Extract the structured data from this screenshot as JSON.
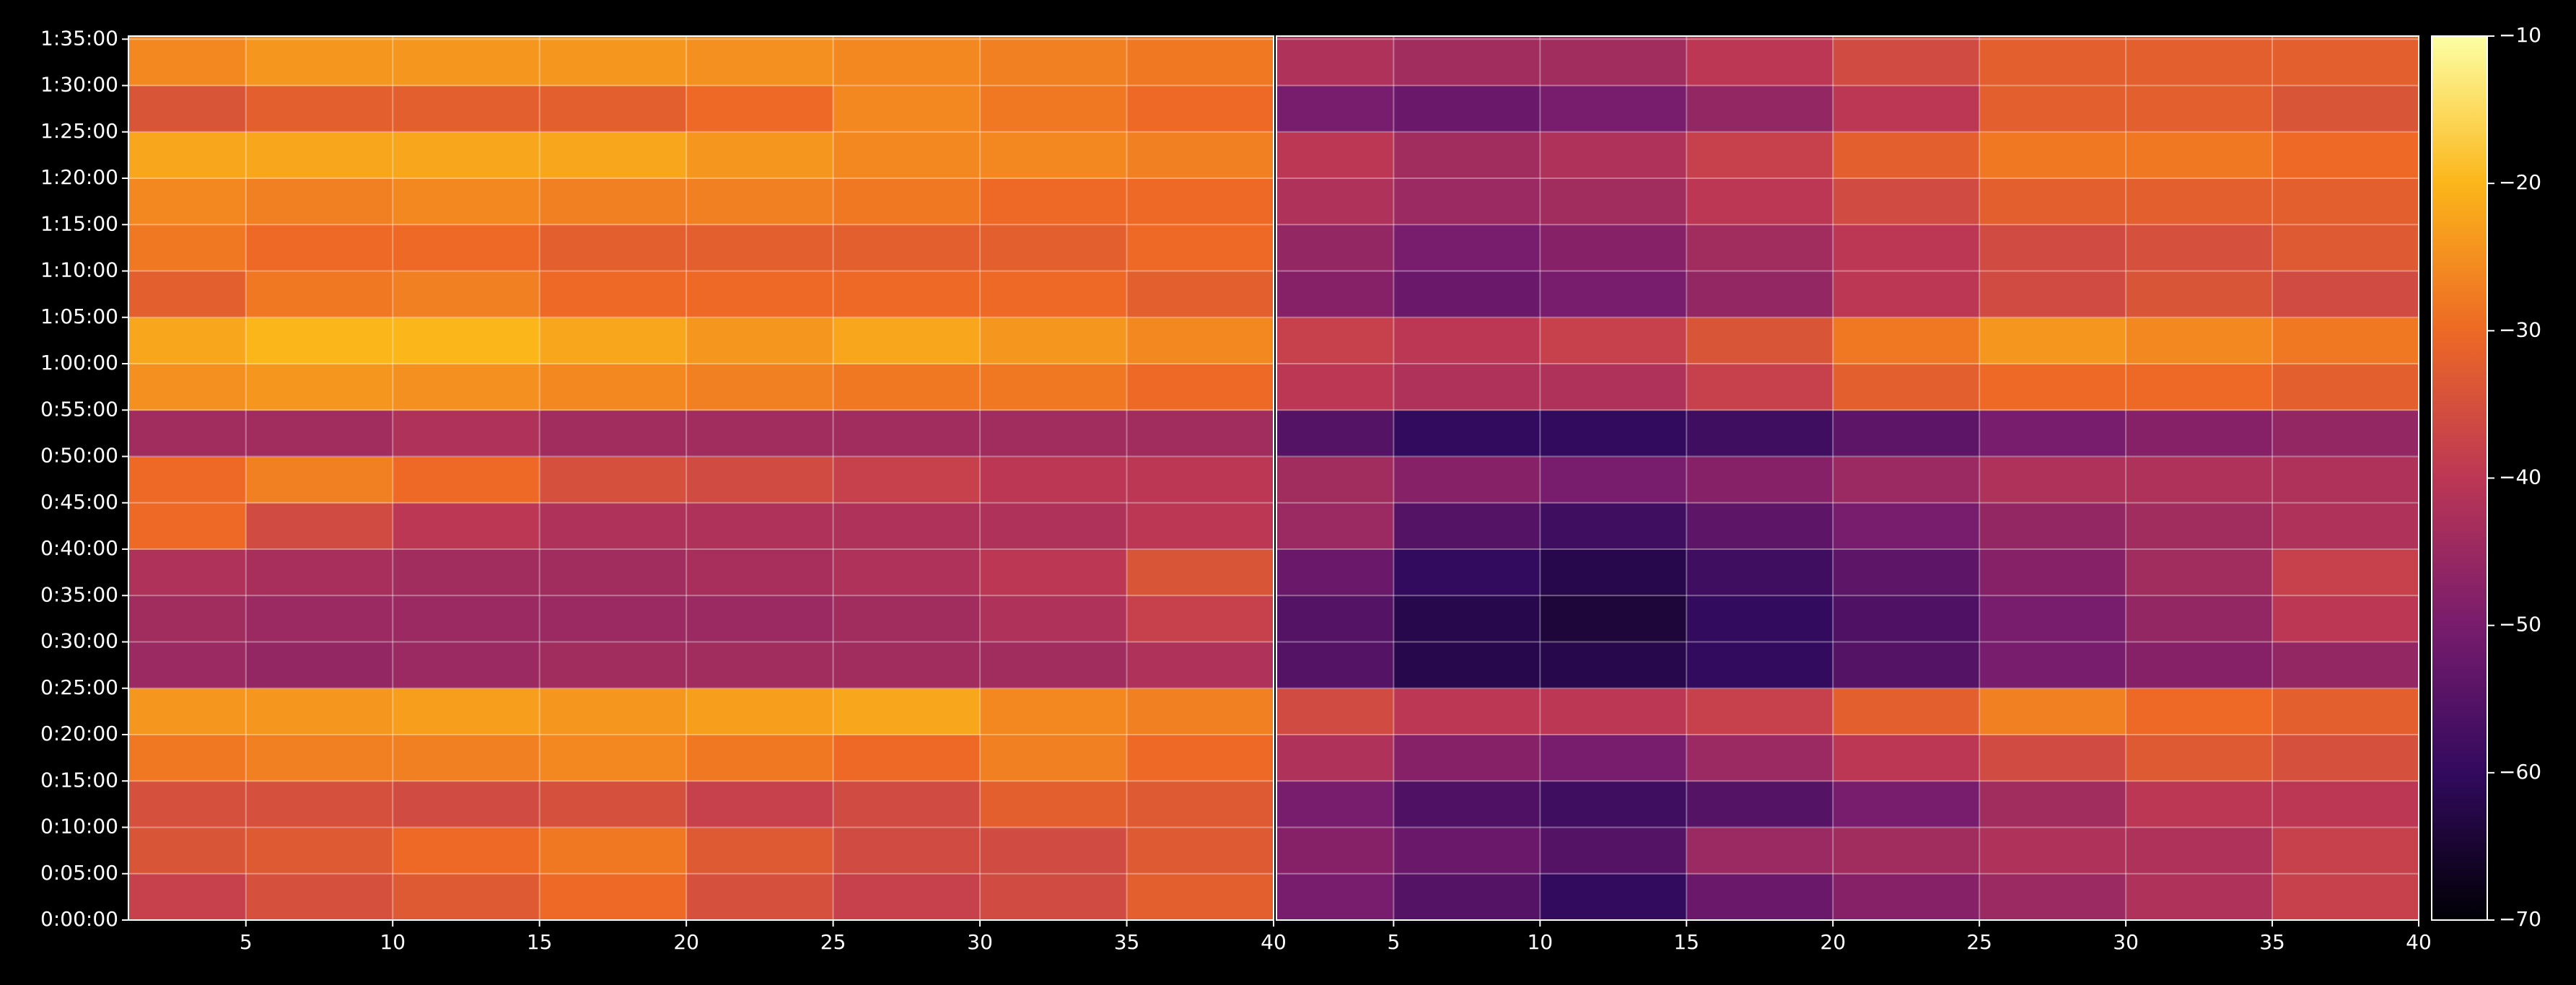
{
  "chart_data": [
    {
      "type": "heatmap",
      "xlim": [
        1,
        40
      ],
      "xticks": [
        5,
        10,
        15,
        20,
        25,
        30,
        35,
        40
      ],
      "ylim": [
        0,
        5720
      ],
      "yticks": [
        {
          "value": 0,
          "label": "0:00:00"
        },
        {
          "value": 300,
          "label": "0:05:00"
        },
        {
          "value": 600,
          "label": "0:10:00"
        },
        {
          "value": 900,
          "label": "0:15:00"
        },
        {
          "value": 1200,
          "label": "0:20:00"
        },
        {
          "value": 1500,
          "label": "0:25:00"
        },
        {
          "value": 1800,
          "label": "0:30:00"
        },
        {
          "value": 2100,
          "label": "0:35:00"
        },
        {
          "value": 2400,
          "label": "0:40:00"
        },
        {
          "value": 2700,
          "label": "0:45:00"
        },
        {
          "value": 3000,
          "label": "0:50:00"
        },
        {
          "value": 3300,
          "label": "0:55:00"
        },
        {
          "value": 3600,
          "label": "1:00:00"
        },
        {
          "value": 3900,
          "label": "1:05:00"
        },
        {
          "value": 4200,
          "label": "1:10:00"
        },
        {
          "value": 4500,
          "label": "1:15:00"
        },
        {
          "value": 4800,
          "label": "1:20:00"
        },
        {
          "value": 5100,
          "label": "1:25:00"
        },
        {
          "value": 5400,
          "label": "1:30:00"
        },
        {
          "value": 5700,
          "label": "1:35:00"
        }
      ],
      "grid": true,
      "xbins": [
        1,
        5,
        10,
        15,
        20,
        25,
        30,
        35,
        40
      ],
      "ybins": [
        0,
        300,
        600,
        900,
        1200,
        1500,
        1800,
        2100,
        2400,
        2700,
        3000,
        3300,
        3600,
        3900,
        4200,
        4500,
        4800,
        5100,
        5400,
        5720
      ],
      "values": [
        [
          -38,
          -35,
          -33,
          -30,
          -35,
          -38,
          -36,
          -32
        ],
        [
          -34,
          -33,
          -30,
          -28,
          -33,
          -36,
          -36,
          -33
        ],
        [
          -35,
          -35,
          -36,
          -35,
          -38,
          -36,
          -32,
          -33
        ],
        [
          -28,
          -27,
          -27,
          -26,
          -28,
          -30,
          -27,
          -30
        ],
        [
          -24,
          -24,
          -23,
          -24,
          -23,
          -22,
          -26,
          -27
        ],
        [
          -45,
          -46,
          -45,
          -44,
          -44,
          -44,
          -44,
          -42
        ],
        [
          -44,
          -45,
          -45,
          -45,
          -45,
          -44,
          -42,
          -38
        ],
        [
          -42,
          -43,
          -44,
          -44,
          -43,
          -42,
          -40,
          -34
        ],
        [
          -30,
          -36,
          -40,
          -42,
          -42,
          -42,
          -42,
          -40
        ],
        [
          -30,
          -27,
          -30,
          -35,
          -36,
          -38,
          -40,
          -40
        ],
        [
          -44,
          -44,
          -42,
          -44,
          -44,
          -44,
          -44,
          -44
        ],
        [
          -25,
          -24,
          -25,
          -26,
          -27,
          -28,
          -28,
          -30
        ],
        [
          -22,
          -20,
          -20,
          -22,
          -24,
          -22,
          -24,
          -26
        ],
        [
          -32,
          -28,
          -27,
          -30,
          -30,
          -30,
          -30,
          -32
        ],
        [
          -28,
          -30,
          -30,
          -32,
          -32,
          -32,
          -32,
          -30
        ],
        [
          -26,
          -27,
          -26,
          -27,
          -27,
          -28,
          -30,
          -30
        ],
        [
          -22,
          -22,
          -22,
          -22,
          -24,
          -26,
          -26,
          -27
        ],
        [
          -34,
          -32,
          -32,
          -32,
          -30,
          -26,
          -28,
          -30
        ],
        [
          -26,
          -24,
          -24,
          -24,
          -25,
          -26,
          -27,
          -28
        ]
      ]
    },
    {
      "type": "heatmap",
      "xlim": [
        1,
        40
      ],
      "xticks": [
        5,
        10,
        15,
        20,
        25,
        30,
        35,
        40
      ],
      "grid": true,
      "xbins": [
        1,
        5,
        10,
        15,
        20,
        25,
        30,
        35,
        40
      ],
      "ybins": [
        0,
        300,
        600,
        900,
        1200,
        1500,
        1800,
        2100,
        2400,
        2700,
        3000,
        3300,
        3600,
        3900,
        4200,
        4500,
        4800,
        5100,
        5400,
        5720
      ],
      "values": [
        [
          -50,
          -55,
          -60,
          -52,
          -48,
          -45,
          -42,
          -38
        ],
        [
          -48,
          -52,
          -55,
          -45,
          -44,
          -42,
          -42,
          -38
        ],
        [
          -50,
          -56,
          -58,
          -55,
          -50,
          -44,
          -40,
          -40
        ],
        [
          -42,
          -48,
          -50,
          -45,
          -40,
          -36,
          -33,
          -35
        ],
        [
          -36,
          -40,
          -40,
          -38,
          -32,
          -27,
          -30,
          -32
        ],
        [
          -55,
          -62,
          -62,
          -60,
          -55,
          -50,
          -48,
          -46
        ],
        [
          -55,
          -62,
          -64,
          -60,
          -56,
          -50,
          -46,
          -40
        ],
        [
          -52,
          -60,
          -62,
          -58,
          -54,
          -48,
          -44,
          -38
        ],
        [
          -45,
          -55,
          -58,
          -54,
          -50,
          -46,
          -44,
          -42
        ],
        [
          -44,
          -48,
          -50,
          -48,
          -45,
          -42,
          -42,
          -42
        ],
        [
          -55,
          -60,
          -60,
          -58,
          -54,
          -50,
          -48,
          -46
        ],
        [
          -40,
          -42,
          -42,
          -38,
          -32,
          -30,
          -30,
          -32
        ],
        [
          -38,
          -40,
          -38,
          -34,
          -28,
          -24,
          -26,
          -28
        ],
        [
          -48,
          -52,
          -50,
          -46,
          -40,
          -36,
          -34,
          -36
        ],
        [
          -46,
          -50,
          -48,
          -44,
          -40,
          -36,
          -35,
          -33
        ],
        [
          -42,
          -45,
          -44,
          -40,
          -36,
          -32,
          -32,
          -32
        ],
        [
          -40,
          -44,
          -42,
          -38,
          -32,
          -28,
          -28,
          -30
        ],
        [
          -50,
          -52,
          -50,
          -46,
          -40,
          -32,
          -32,
          -34
        ],
        [
          -42,
          -44,
          -44,
          -40,
          -36,
          -32,
          -32,
          -32
        ]
      ],
      "colorbar": {
        "lim": [
          -70,
          -10
        ],
        "ticks": [
          {
            "value": -70,
            "label": "−70"
          },
          {
            "value": -60,
            "label": "−60"
          },
          {
            "value": -50,
            "label": "−50"
          },
          {
            "value": -40,
            "label": "−40"
          },
          {
            "value": -30,
            "label": "−30"
          },
          {
            "value": -20,
            "label": "−20"
          },
          {
            "value": -10,
            "label": "−10"
          }
        ],
        "colormap": [
          "#000004",
          "#320a5e",
          "#781c6d",
          "#bc3754",
          "#ed6925",
          "#fbb61a",
          "#fcffa4"
        ]
      }
    }
  ]
}
